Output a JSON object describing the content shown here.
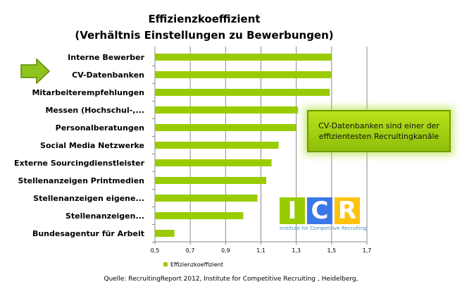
{
  "chart_data": {
    "type": "bar",
    "orientation": "horizontal",
    "title": [
      "Effizienzkoeffizient",
      "(Verhältnis Einstellungen zu Bewerbungen)"
    ],
    "categories": [
      "Interne Bewerber",
      "CV-Datenbanken",
      "Mitarbeiterempfehlungen",
      "Messen (Hochschul-,...",
      "Personalberatungen",
      "Social Media Netzwerke",
      "Externe Sourcingdienstleister",
      "Stellenanzeigen Printmedien",
      "Stellenanzeigen eigene...",
      "Stellenanzeigen...",
      "Bundesagentur für Arbeit"
    ],
    "series": [
      {
        "name": "Effizienzkoeffizient",
        "values": [
          1.5,
          1.5,
          1.49,
          1.31,
          1.3,
          1.2,
          1.16,
          1.13,
          1.08,
          1.0,
          0.61
        ]
      }
    ],
    "xlim": [
      0.5,
      1.7
    ],
    "xticks": [
      "0,5",
      "0,7",
      "0,9",
      "1,1",
      "1,3",
      "1,5",
      "1,7"
    ],
    "grid": true,
    "legend": "bottom-left",
    "bar_color": "#99cc00",
    "highlighted_category": "CV-Datenbanken"
  },
  "callout": "CV-Datenbanken  sind einer der effizientesten Recruitingkanäle",
  "logo": {
    "letters": [
      "I",
      "C",
      "R"
    ],
    "subtitle": "Institute for Competitive Recruiting",
    "colors": [
      "#99cc00",
      "#3a78e8",
      "#ffc20e"
    ]
  },
  "source": "Quelle: RecruitingReport 2012, Institute for Competitive Recruiting , Heidelberg,"
}
